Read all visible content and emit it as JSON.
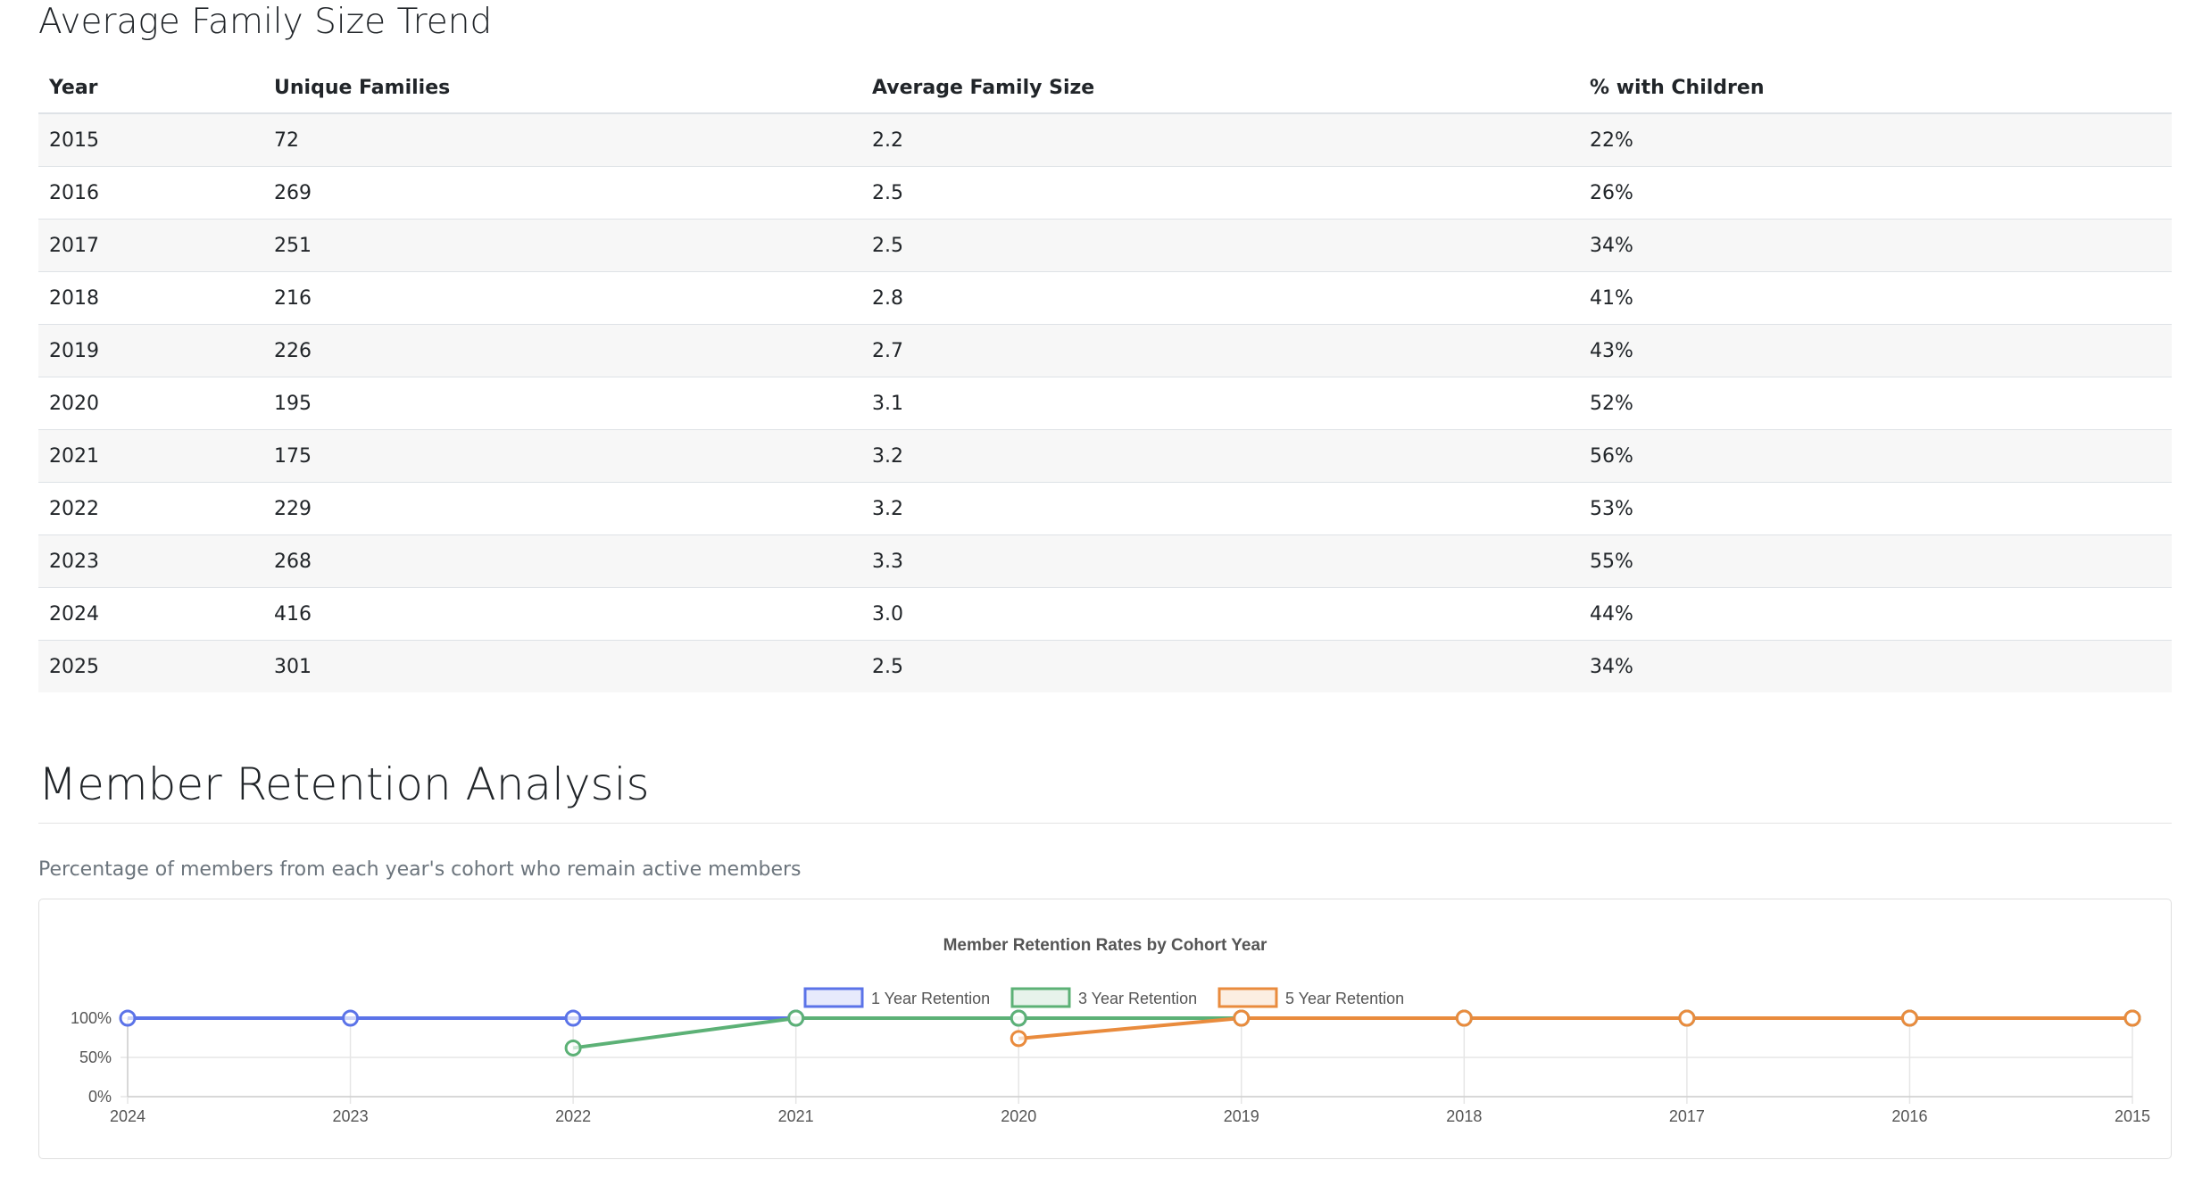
{
  "family_section": {
    "title": "Average Family Size Trend",
    "columns": [
      "Year",
      "Unique Families",
      "Average Family Size",
      "% with Children"
    ],
    "rows": [
      [
        "2015",
        "72",
        "2.2",
        "22%"
      ],
      [
        "2016",
        "269",
        "2.5",
        "26%"
      ],
      [
        "2017",
        "251",
        "2.5",
        "34%"
      ],
      [
        "2018",
        "216",
        "2.8",
        "41%"
      ],
      [
        "2019",
        "226",
        "2.7",
        "43%"
      ],
      [
        "2020",
        "195",
        "3.1",
        "52%"
      ],
      [
        "2021",
        "175",
        "3.2",
        "56%"
      ],
      [
        "2022",
        "229",
        "3.2",
        "53%"
      ],
      [
        "2023",
        "268",
        "3.3",
        "55%"
      ],
      [
        "2024",
        "416",
        "3.0",
        "44%"
      ],
      [
        "2025",
        "301",
        "2.5",
        "34%"
      ]
    ]
  },
  "retention_section": {
    "title": "Member Retention Analysis",
    "description": "Percentage of members from each year's cohort who remain active members"
  },
  "chart_data": {
    "type": "line",
    "title": "Member Retention Rates by Cohort Year",
    "xlabel": "",
    "ylabel": "",
    "categories": [
      "2024",
      "2023",
      "2022",
      "2021",
      "2020",
      "2019",
      "2018",
      "2017",
      "2016",
      "2015"
    ],
    "y_ticks": [
      "0%",
      "50%",
      "100%"
    ],
    "ylim": [
      0,
      100
    ],
    "grid": true,
    "legend_position": "top",
    "series": [
      {
        "name": "1 Year Retention",
        "color": "#5b73e8",
        "values": [
          100,
          100,
          100,
          100,
          100,
          100,
          100,
          100,
          100,
          100
        ]
      },
      {
        "name": "3 Year Retention",
        "color": "#5cb176",
        "values": [
          null,
          null,
          62,
          100,
          100,
          100,
          100,
          100,
          100,
          100
        ]
      },
      {
        "name": "5 Year Retention",
        "color": "#e98b3d",
        "values": [
          null,
          null,
          null,
          null,
          74,
          100,
          100,
          100,
          100,
          100
        ]
      }
    ]
  }
}
